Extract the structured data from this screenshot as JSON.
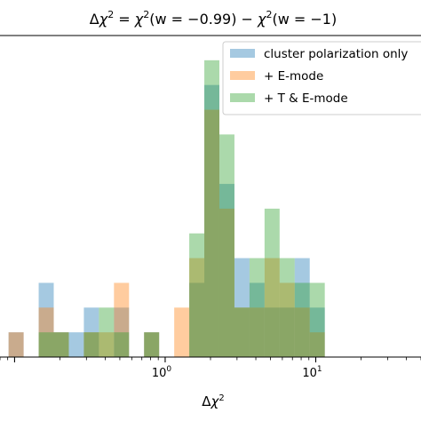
{
  "chart_data": {
    "type": "bar",
    "subtype": "overlaid-histogram",
    "title": "Δχ² = χ²(w = −0.99) − χ²(w = −1)",
    "title_parts": {
      "delta": "Δ",
      "chi": "χ",
      "sq": "2",
      "eq": " = ",
      "lhs": "(w = −0.99)",
      "minus": " − ",
      "rhs": "(w = −1)"
    },
    "xlabel": "Δχ²",
    "xlabel_parts": {
      "delta": "Δ",
      "chi": "χ",
      "sq": "2"
    },
    "ylabel": "",
    "x_scale": "log",
    "xlim": [
      0.08,
      50
    ],
    "ylim": [
      0,
      13
    ],
    "grid": false,
    "legend_position": "top-right",
    "x_tick_labels": [
      {
        "value": 1,
        "base": "10",
        "exp": "0"
      },
      {
        "value": 10,
        "base": "10",
        "exp": "1"
      }
    ],
    "bin_edges_log10": [
      -1.04,
      -0.94,
      -0.84,
      -0.74,
      -0.64,
      -0.54,
      -0.44,
      -0.34,
      -0.24,
      -0.14,
      -0.04,
      0.06,
      0.16,
      0.26,
      0.36,
      0.46,
      0.56,
      0.66,
      0.76,
      0.86,
      0.96,
      1.06
    ],
    "series": [
      {
        "name": "cluster polarization only",
        "color": "#1f77b4",
        "counts": [
          1,
          0,
          3,
          1,
          1,
          2,
          0,
          2,
          0,
          1,
          0,
          0,
          3,
          11,
          7,
          4,
          3,
          2,
          2,
          4,
          2
        ]
      },
      {
        "name": "+ E-mode",
        "color": "#ff7f0e",
        "counts": [
          1,
          0,
          2,
          1,
          0,
          1,
          1,
          3,
          0,
          1,
          0,
          2,
          4,
          10,
          6,
          2,
          2,
          4,
          3,
          2,
          1
        ]
      },
      {
        "name": "+ T & E-mode",
        "color": "#2ca02c",
        "counts": [
          0,
          0,
          1,
          1,
          0,
          1,
          2,
          1,
          0,
          1,
          0,
          0,
          5,
          12,
          9,
          2,
          4,
          6,
          4,
          3,
          3
        ]
      }
    ]
  }
}
